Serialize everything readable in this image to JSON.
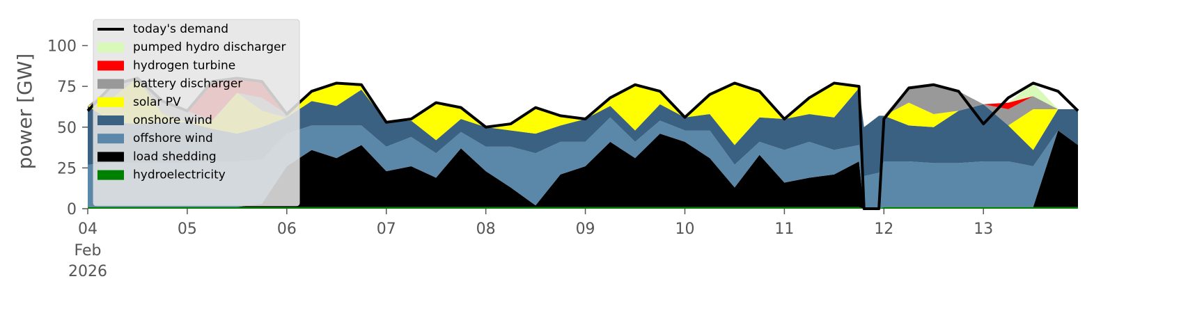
{
  "chart_data": {
    "type": "area",
    "ylabel": "power [GW]",
    "x": [
      4,
      4.25,
      4.5,
      4.75,
      5,
      5.25,
      5.5,
      5.75,
      6,
      6.25,
      6.5,
      6.75,
      7,
      7.25,
      7.5,
      7.75,
      8,
      8.25,
      8.5,
      8.75,
      9,
      9.25,
      9.5,
      9.75,
      10,
      10.25,
      10.5,
      10.75,
      11,
      11.25,
      11.5,
      11.75,
      11.8,
      11.95,
      12,
      12.25,
      12.5,
      12.75,
      13,
      13.25,
      13.5,
      13.75,
      13.95
    ],
    "xlim": [
      4,
      13.95
    ],
    "xticks": [
      {
        "value": 4,
        "label": "04"
      },
      {
        "value": 5,
        "label": "05"
      },
      {
        "value": 6,
        "label": "06"
      },
      {
        "value": 7,
        "label": "07"
      },
      {
        "value": 8,
        "label": "08"
      },
      {
        "value": 9,
        "label": "09"
      },
      10,
      11,
      12,
      13
    ],
    "x_month": "Feb",
    "x_year": "2026",
    "ylim": [
      0,
      116
    ],
    "yticks": [
      0,
      25,
      50,
      75,
      100
    ],
    "legend": "upper left",
    "series": [
      {
        "name": "today's demand",
        "type": "line",
        "color": "#000000",
        "values": [
          60,
          76,
          80,
          66,
          60,
          78,
          80,
          78,
          58,
          72,
          77,
          76,
          53,
          55,
          65,
          62,
          50,
          52,
          62,
          57,
          55,
          68,
          76,
          72,
          56,
          70,
          77,
          72,
          55,
          68,
          77,
          75,
          0,
          0,
          55,
          74,
          76,
          72,
          52,
          68,
          77,
          72,
          60
        ]
      },
      {
        "name": "pumped hydro discharger",
        "color": "#d8f9b8",
        "values": [
          0,
          0,
          0,
          0,
          0,
          0,
          0,
          0,
          0,
          0,
          0,
          0,
          0,
          0,
          0,
          0,
          0,
          0,
          0,
          0,
          0,
          0,
          0,
          0,
          0,
          0,
          0,
          0,
          0,
          0,
          0,
          0,
          0,
          0,
          0,
          0,
          0,
          0,
          0,
          0,
          8,
          0,
          0
        ]
      },
      {
        "name": "hydrogen turbine",
        "color": "#ff0000",
        "values": [
          0,
          0,
          0,
          0,
          0,
          25,
          9,
          10,
          0,
          0,
          0,
          0,
          0,
          0,
          0,
          0,
          0,
          0,
          0,
          0,
          0,
          0,
          0,
          0,
          0,
          0,
          0,
          0,
          0,
          0,
          0,
          0,
          0,
          0,
          0,
          0,
          0,
          0,
          0,
          4,
          0,
          0,
          0
        ]
      },
      {
        "name": "battery discharger",
        "color": "#999999",
        "values": [
          0,
          8,
          0,
          8,
          7,
          0,
          0,
          8,
          2,
          0,
          0,
          0,
          0,
          0,
          0,
          0,
          0,
          0,
          0,
          0,
          0,
          0,
          0,
          0,
          0,
          0,
          0,
          0,
          0,
          0,
          0,
          0,
          0,
          0,
          0,
          10,
          18,
          12,
          0,
          10,
          8,
          0,
          0
        ]
      },
      {
        "name": "solar PV",
        "color": "#ffff00",
        "values": [
          0,
          15,
          28,
          5,
          0,
          5,
          25,
          10,
          0,
          6,
          14,
          3,
          0,
          1,
          23,
          7,
          0,
          4,
          16,
          6,
          0,
          5,
          28,
          8,
          0,
          12,
          38,
          16,
          0,
          10,
          21,
          1,
          0,
          0,
          0,
          14,
          8,
          0,
          0,
          0,
          25,
          0,
          0
        ]
      },
      {
        "name": "onshore wind",
        "color": "#3b6182",
        "values": [
          36,
          25,
          24,
          25,
          25,
          20,
          17,
          20,
          10,
          15,
          12,
          22,
          15,
          10,
          8,
          8,
          12,
          10,
          12,
          10,
          14,
          7,
          7,
          10,
          8,
          10,
          12,
          15,
          19,
          17,
          20,
          35,
          30,
          35,
          28,
          22,
          22,
          32,
          35,
          22,
          10,
          13,
          22
        ]
      },
      {
        "name": "offshore wind",
        "color": "#5b87a9",
        "values": [
          26,
          27,
          27,
          27,
          27,
          28,
          28,
          27,
          20,
          15,
          20,
          12,
          15,
          18,
          15,
          10,
          15,
          25,
          32,
          20,
          15,
          15,
          10,
          8,
          7,
          17,
          14,
          8,
          20,
          22,
          15,
          10,
          20,
          22,
          28,
          28,
          27,
          27,
          28,
          28,
          25,
          0,
          0
        ]
      },
      {
        "name": "load shedding",
        "color": "#000000",
        "values": [
          0,
          0,
          0,
          0,
          0,
          0,
          0,
          2,
          25,
          35,
          30,
          38,
          22,
          25,
          18,
          36,
          22,
          12,
          1,
          20,
          25,
          40,
          30,
          45,
          40,
          30,
          12,
          32,
          15,
          18,
          20,
          28,
          0,
          0,
          0,
          0,
          0,
          0,
          0,
          0,
          0,
          47,
          38
        ]
      },
      {
        "name": "hydroelectricity",
        "color": "#008000",
        "values": [
          1,
          1,
          1,
          1,
          1,
          1,
          1,
          1,
          1,
          1,
          1,
          1,
          1,
          1,
          1,
          1,
          1,
          1,
          1,
          1,
          1,
          1,
          1,
          1,
          1,
          1,
          1,
          1,
          1,
          1,
          1,
          1,
          0,
          0,
          1,
          1,
          1,
          1,
          1,
          1,
          1,
          1,
          1
        ]
      }
    ]
  }
}
